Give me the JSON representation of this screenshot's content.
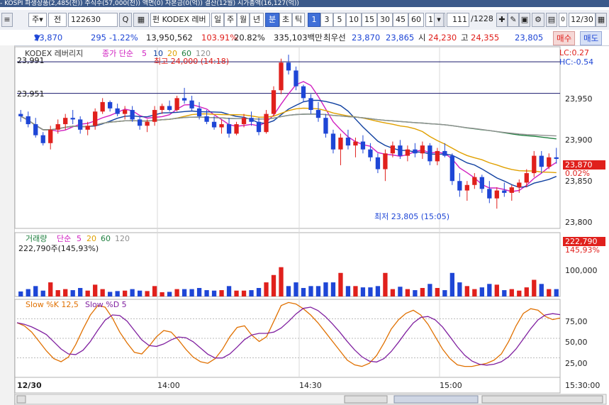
{
  "title_bar": "- KOSPI 파생상품(2,485(천)) 주식수(57,000(천)) 액면(0) 자본금(0(억)) 결산(12월) 시가총액(16,127(억))",
  "toolbar": {
    "btn_ju": "주",
    "btn_jeon": "전",
    "code_input": "122630",
    "search_icon": "Q",
    "fund_label": "펀",
    "name": "KODEX 레버",
    "periods": [
      "일",
      "주",
      "월",
      "년",
      "분",
      "초",
      "틱"
    ],
    "active_period": "분",
    "intervals": [
      "1",
      "3",
      "5",
      "10",
      "15",
      "30",
      "45",
      "60"
    ],
    "active_interval": "1",
    "unit_select": "1",
    "count": "111",
    "total": "/1228",
    "date_value": "12/30",
    "date_checkbox": "0"
  },
  "info": {
    "price": "23,870",
    "change_arrow": "▼",
    "change": "295",
    "change_pct": "-1.22%",
    "volume": "13,950,562",
    "vol_ratio": "103.91%",
    "turnover": "20.82%",
    "amount": "335,103백만",
    "best_ask_label": "최우선",
    "best_ask": "23,870",
    "best_bid": "23,865",
    "open_label": "시",
    "open": "24,230",
    "high_label": "고",
    "high": "24,355",
    "last": "23,805",
    "buy_button": "매수",
    "sell_button": "매도"
  },
  "chart_data": [
    {
      "type": "candlestick",
      "legend_name": "KODEX 레버리지",
      "legend_ma": "종가 단순",
      "ma_periods": [
        "5",
        "10",
        "20",
        "60",
        "120"
      ],
      "ma_colors": [
        "#d020c0",
        "#1040a0",
        "#e0a000",
        "#208040",
        "#909090"
      ],
      "lc_label": "LC:0.27",
      "hc_label": "HC:-0.54",
      "ref_lines": [
        "23,991",
        "23,951"
      ],
      "high_annotation": "최고 24,000 (14:18)",
      "low_annotation": "최저 23,805 (15:05)",
      "y_ticks": [
        "23,950",
        "23,900",
        "23,850",
        "23,800"
      ],
      "current_price_tag": "23,870",
      "current_pct_tag": "0.02%",
      "ylim": [
        23780,
        24010
      ],
      "candles": [
        [
          23925,
          23930,
          23915,
          23922
        ],
        [
          23922,
          23928,
          23908,
          23912
        ],
        [
          23912,
          23920,
          23895,
          23898
        ],
        [
          23898,
          23902,
          23885,
          23888
        ],
        [
          23888,
          23910,
          23880,
          23905
        ],
        [
          23905,
          23918,
          23900,
          23912
        ],
        [
          23912,
          23925,
          23905,
          23920
        ],
        [
          23920,
          23930,
          23912,
          23918
        ],
        [
          23918,
          23922,
          23900,
          23905
        ],
        [
          23905,
          23915,
          23898,
          23910
        ],
        [
          23910,
          23932,
          23905,
          23928
        ],
        [
          23928,
          23945,
          23925,
          23940
        ],
        [
          23940,
          23942,
          23928,
          23932
        ],
        [
          23932,
          23938,
          23922,
          23925
        ],
        [
          23925,
          23935,
          23918,
          23930
        ],
        [
          23930,
          23935,
          23915,
          23918
        ],
        [
          23918,
          23922,
          23905,
          23910
        ],
        [
          23910,
          23918,
          23902,
          23915
        ],
        [
          23915,
          23935,
          23910,
          23930
        ],
        [
          23930,
          23938,
          23925,
          23935
        ],
        [
          23935,
          23942,
          23928,
          23930
        ],
        [
          23930,
          23948,
          23928,
          23945
        ],
        [
          23945,
          23958,
          23938,
          23942
        ],
        [
          23942,
          23948,
          23928,
          23932
        ],
        [
          23932,
          23940,
          23918,
          23922
        ],
        [
          23922,
          23930,
          23912,
          23915
        ],
        [
          23915,
          23922,
          23905,
          23908
        ],
        [
          23908,
          23918,
          23900,
          23912
        ],
        [
          23912,
          23920,
          23895,
          23900
        ],
        [
          23900,
          23915,
          23898,
          23912
        ],
        [
          23912,
          23925,
          23908,
          23920
        ],
        [
          23920,
          23928,
          23910,
          23915
        ],
        [
          23915,
          23920,
          23898,
          23902
        ],
        [
          23902,
          23930,
          23900,
          23925
        ],
        [
          23925,
          23960,
          23922,
          23955
        ],
        [
          23955,
          23995,
          23950,
          23990
        ],
        [
          23990,
          24000,
          23975,
          23980
        ],
        [
          23980,
          23985,
          23955,
          23960
        ],
        [
          23960,
          23962,
          23940,
          23945
        ],
        [
          23945,
          23950,
          23925,
          23930
        ],
        [
          23930,
          23940,
          23915,
          23920
        ],
        [
          23920,
          23925,
          23895,
          23900
        ],
        [
          23900,
          23905,
          23875,
          23880
        ],
        [
          23880,
          23900,
          23860,
          23895
        ],
        [
          23895,
          23905,
          23880,
          23885
        ],
        [
          23885,
          23895,
          23870,
          23890
        ],
        [
          23890,
          23898,
          23875,
          23880
        ],
        [
          23880,
          23888,
          23865,
          23870
        ],
        [
          23870,
          23875,
          23850,
          23855
        ],
        [
          23855,
          23880,
          23840,
          23875
        ],
        [
          23875,
          23890,
          23870,
          23885
        ],
        [
          23885,
          23892,
          23868,
          23872
        ],
        [
          23872,
          23885,
          23865,
          23880
        ],
        [
          23880,
          23888,
          23870,
          23875
        ],
        [
          23875,
          23890,
          23868,
          23885
        ],
        [
          23885,
          23888,
          23860,
          23865
        ],
        [
          23865,
          23882,
          23860,
          23878
        ],
        [
          23878,
          23888,
          23870,
          23872
        ],
        [
          23872,
          23875,
          23835,
          23840
        ],
        [
          23840,
          23850,
          23820,
          23828
        ],
        [
          23828,
          23840,
          23815,
          23835
        ],
        [
          23835,
          23850,
          23830,
          23845
        ],
        [
          23845,
          23848,
          23825,
          23830
        ],
        [
          23830,
          23840,
          23812,
          23818
        ],
        [
          23818,
          23832,
          23805,
          23828
        ],
        [
          23828,
          23838,
          23820,
          23825
        ],
        [
          23825,
          23835,
          23815,
          23832
        ],
        [
          23832,
          23842,
          23825,
          23838
        ],
        [
          23838,
          23855,
          23832,
          23850
        ],
        [
          23850,
          23878,
          23845,
          23872
        ],
        [
          23872,
          23878,
          23850,
          23858
        ],
        [
          23858,
          23875,
          23855,
          23870
        ],
        [
          23870,
          23882,
          23862,
          23868
        ]
      ]
    },
    {
      "type": "bar",
      "legend_name": "거래량",
      "legend_ma": "단순",
      "ma_periods": [
        "5",
        "20",
        "60",
        "120"
      ],
      "ma_colors": [
        "#d020c0",
        "#e0a000",
        "#208040",
        "#909090"
      ],
      "volume_text": "222,790주(145,93%)",
      "y_ticks": [
        "100,000"
      ],
      "current_tag": "222,790",
      "current_pct_tag": "145,93%",
      "ylim": [
        0,
        260000
      ]
    },
    {
      "type": "line",
      "legend_k": "Slow %K 12,5",
      "legend_d": "Slow %D 5",
      "y_ticks": [
        "75,00",
        "50,00",
        "25,00"
      ],
      "ylim": [
        0,
        100
      ],
      "k_values": [
        70,
        66,
        58,
        46,
        34,
        24,
        20,
        26,
        42,
        62,
        80,
        92,
        90,
        76,
        58,
        44,
        32,
        30,
        40,
        52,
        60,
        58,
        48,
        36,
        26,
        20,
        18,
        24,
        36,
        52,
        64,
        66,
        54,
        46,
        52,
        72,
        92,
        96,
        94,
        88,
        80,
        70,
        58,
        46,
        34,
        22,
        16,
        14,
        18,
        28,
        44,
        62,
        74,
        82,
        86,
        80,
        68,
        52,
        36,
        24,
        16,
        14,
        14,
        16,
        18,
        22,
        30,
        46,
        66,
        82,
        88,
        86,
        78,
        74,
        76
      ]
    },
    {
      "type": "axis",
      "x_ticks": [
        "12/30",
        "14:00",
        "14:30",
        "15:00",
        "15:30:00"
      ]
    }
  ]
}
